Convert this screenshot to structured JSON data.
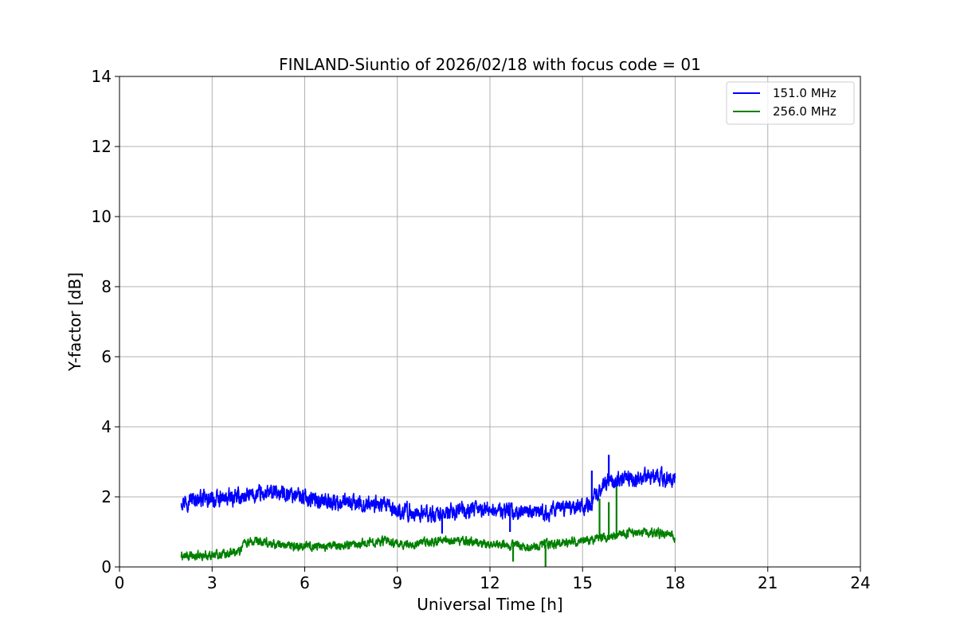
{
  "chart_data": {
    "type": "line",
    "title": "FINLAND-Siuntio of 2026/02/18 with focus code = 01",
    "xlabel": "Universal Time [h]",
    "ylabel": "Y-factor [dB]",
    "xlim": [
      0,
      24
    ],
    "ylim": [
      0,
      14
    ],
    "xticks": [
      0,
      3,
      6,
      9,
      12,
      15,
      18,
      21,
      24
    ],
    "yticks": [
      0,
      2,
      4,
      6,
      8,
      10,
      12,
      14
    ],
    "grid": true,
    "legend_position": "top-right",
    "series": [
      {
        "name": "151.0 MHz",
        "color": "#0000ff",
        "noise_amplitude": 0.22,
        "x": [
          2.0,
          2.5,
          3.0,
          3.5,
          4.0,
          4.5,
          5.0,
          5.5,
          6.0,
          6.5,
          7.0,
          7.5,
          8.0,
          8.5,
          9.0,
          9.5,
          10.0,
          10.5,
          11.0,
          11.5,
          12.0,
          12.5,
          13.0,
          13.5,
          14.0,
          14.5,
          15.0,
          15.3,
          15.5,
          16.0,
          16.5,
          17.0,
          17.5,
          18.0
        ],
        "y": [
          1.9,
          1.95,
          1.9,
          1.95,
          2.0,
          2.05,
          2.1,
          2.1,
          2.0,
          1.9,
          1.85,
          1.8,
          1.8,
          1.75,
          1.6,
          1.55,
          1.5,
          1.5,
          1.6,
          1.6,
          1.65,
          1.6,
          1.55,
          1.5,
          1.6,
          1.7,
          1.75,
          1.8,
          2.2,
          2.5,
          2.5,
          2.55,
          2.55,
          2.5
        ],
        "spikes": [
          {
            "x": 15.85,
            "y": 3.2
          },
          {
            "x": 15.3,
            "y": 2.75
          },
          {
            "x": 12.65,
            "y": 1.0
          },
          {
            "x": 10.45,
            "y": 0.95
          }
        ]
      },
      {
        "name": "256.0 MHz",
        "color": "#008000",
        "noise_amplitude": 0.12,
        "x": [
          2.0,
          2.5,
          3.0,
          3.5,
          3.9,
          4.0,
          4.5,
          5.0,
          5.5,
          6.0,
          6.5,
          7.0,
          7.5,
          8.0,
          8.5,
          9.0,
          9.5,
          10.0,
          10.5,
          11.0,
          11.5,
          12.0,
          12.5,
          13.0,
          13.5,
          14.0,
          14.5,
          15.0,
          15.5,
          16.0,
          16.5,
          17.0,
          17.5,
          18.0
        ],
        "y": [
          0.3,
          0.3,
          0.35,
          0.4,
          0.45,
          0.7,
          0.7,
          0.65,
          0.6,
          0.6,
          0.6,
          0.6,
          0.65,
          0.7,
          0.75,
          0.65,
          0.65,
          0.7,
          0.75,
          0.75,
          0.7,
          0.65,
          0.65,
          0.6,
          0.6,
          0.65,
          0.7,
          0.75,
          0.8,
          0.9,
          0.95,
          1.0,
          0.95,
          0.85
        ],
        "spikes": [
          {
            "x": 15.55,
            "y": 1.95
          },
          {
            "x": 15.85,
            "y": 1.85
          },
          {
            "x": 16.1,
            "y": 2.3
          },
          {
            "x": 13.8,
            "y": 0.0
          },
          {
            "x": 12.75,
            "y": 0.15
          }
        ]
      }
    ]
  }
}
